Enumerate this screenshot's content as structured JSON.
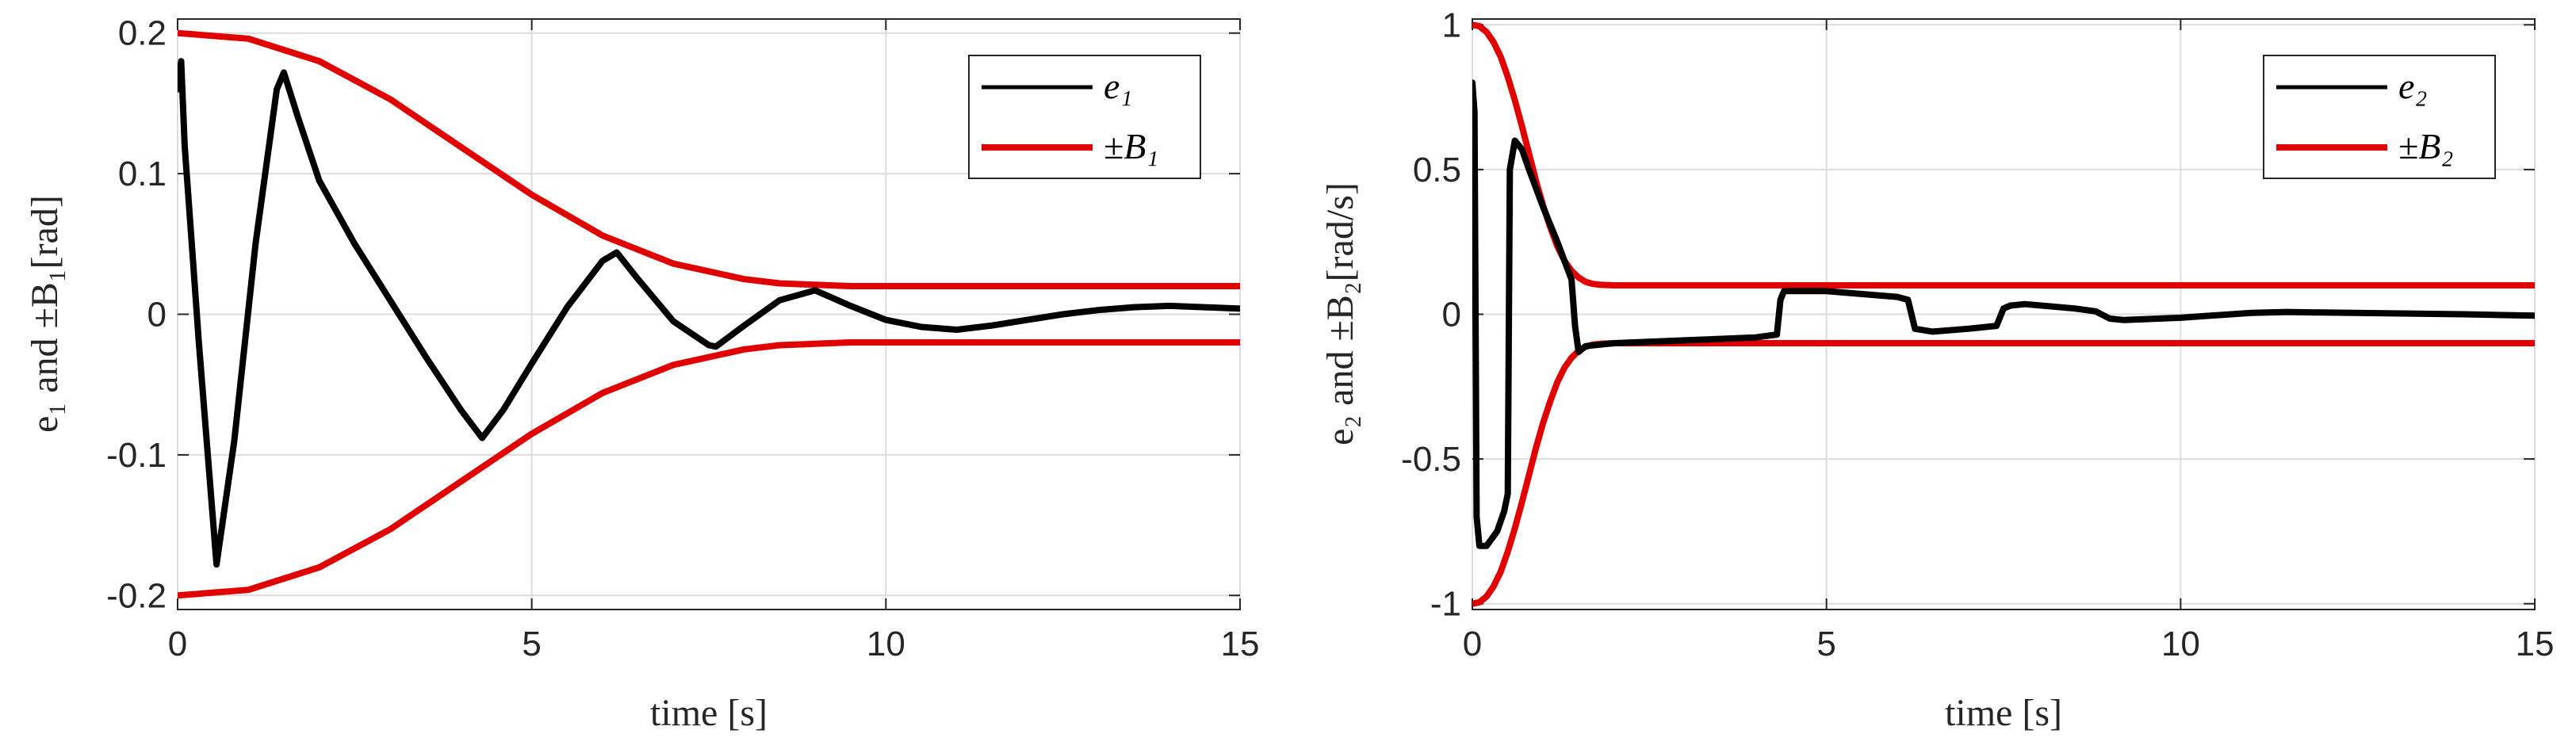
{
  "chart_data": [
    {
      "type": "line",
      "xlabel": "time [s]",
      "ylabel": "e₁ and ±B₁[rad]",
      "xlim": [
        0,
        15
      ],
      "ylim": [
        -0.21,
        0.21
      ],
      "xticks": [
        0,
        5,
        10,
        15
      ],
      "yticks": [
        -0.2,
        -0.1,
        0,
        0.1,
        0.2
      ],
      "xtick_labels": [
        "0",
        "5",
        "10",
        "15"
      ],
      "ytick_labels": [
        "-0.2",
        "-0.1",
        "0",
        "0.1",
        "0.2"
      ],
      "grid": true,
      "legend_position": "top-right",
      "series": [
        {
          "name": "e₁",
          "color": "#000000",
          "x": [
            0,
            0.05,
            0.1,
            0.2,
            0.3,
            0.55,
            0.8,
            1.1,
            1.4,
            1.5,
            1.7,
            2.0,
            2.5,
            3.0,
            3.5,
            4.0,
            4.3,
            4.6,
            5.0,
            5.5,
            6.0,
            6.2,
            6.5,
            7.0,
            7.5,
            7.6,
            8.0,
            8.5,
            9.0,
            9.5,
            10.0,
            10.5,
            11.0,
            11.5,
            12.0,
            12.5,
            13.0,
            13.5,
            14.0,
            14.5,
            15.0
          ],
          "y": [
            0.16,
            0.18,
            0.12,
            0.05,
            -0.02,
            -0.178,
            -0.09,
            0.05,
            0.16,
            0.172,
            0.14,
            0.095,
            0.05,
            0.01,
            -0.03,
            -0.068,
            -0.088,
            -0.068,
            -0.035,
            0.005,
            0.038,
            0.044,
            0.025,
            -0.005,
            -0.022,
            -0.023,
            -0.008,
            0.01,
            0.017,
            0.006,
            -0.004,
            -0.009,
            -0.011,
            -0.008,
            -0.004,
            0,
            0.003,
            0.005,
            0.006,
            0.005,
            0.004
          ]
        },
        {
          "name": "±B₁",
          "color": "#e00000",
          "x": [
            0,
            1,
            2,
            3,
            4,
            5,
            6,
            7,
            8,
            8.5,
            9,
            9.5,
            10,
            11,
            12,
            13,
            14,
            15
          ],
          "y": [
            0.2,
            0.196,
            0.18,
            0.153,
            0.119,
            0.085,
            0.056,
            0.036,
            0.025,
            0.022,
            0.021,
            0.02,
            0.02,
            0.02,
            0.02,
            0.02,
            0.02,
            0.02
          ]
        }
      ]
    },
    {
      "type": "line",
      "xlabel": "time [s]",
      "ylabel": "e₂ and ±B₂[rad/s]",
      "xlim": [
        0,
        15
      ],
      "ylim": [
        -1.02,
        1.02
      ],
      "xticks": [
        0,
        5,
        10,
        15
      ],
      "yticks": [
        -1,
        -0.5,
        0,
        0.5,
        1
      ],
      "xtick_labels": [
        "0",
        "5",
        "10",
        "15"
      ],
      "ytick_labels": [
        "-1",
        "-0.5",
        "0",
        "0.5",
        "1"
      ],
      "grid": true,
      "legend_position": "top-right",
      "series": [
        {
          "name": "e₂",
          "color": "#000000",
          "x": [
            0,
            0.03,
            0.06,
            0.1,
            0.2,
            0.35,
            0.45,
            0.5,
            0.53,
            0.6,
            0.7,
            0.8,
            1.0,
            1.2,
            1.4,
            1.45,
            1.5,
            1.6,
            2.0,
            3.0,
            4.0,
            4.3,
            4.35,
            4.4,
            5.0,
            6.0,
            6.15,
            6.25,
            6.5,
            7.0,
            7.4,
            7.5,
            7.6,
            7.8,
            8.5,
            8.8,
            9.0,
            9.2,
            10.0,
            11.0,
            11.5,
            12.0,
            13.0,
            14.0,
            15.0
          ],
          "y": [
            0.8,
            0.7,
            -0.7,
            -0.8,
            -0.8,
            -0.75,
            -0.68,
            -0.62,
            0.5,
            0.6,
            0.57,
            0.5,
            0.37,
            0.25,
            0.12,
            -0.04,
            -0.13,
            -0.11,
            -0.1,
            -0.09,
            -0.08,
            -0.07,
            0.05,
            0.08,
            0.08,
            0.06,
            0.05,
            -0.05,
            -0.06,
            -0.05,
            -0.04,
            0.02,
            0.03,
            0.035,
            0.02,
            0.01,
            -0.015,
            -0.02,
            -0.012,
            0.005,
            0.008,
            0.006,
            0.003,
            0,
            -0.005
          ]
        },
        {
          "name": "±B₂",
          "color": "#e00000",
          "x": [
            0,
            0.1,
            0.2,
            0.3,
            0.4,
            0.5,
            0.6,
            0.7,
            0.8,
            0.9,
            1.0,
            1.1,
            1.2,
            1.3,
            1.4,
            1.5,
            1.6,
            1.7,
            1.8,
            2.0,
            2.5,
            3,
            15
          ],
          "y": [
            1.0,
            0.995,
            0.975,
            0.94,
            0.89,
            0.82,
            0.74,
            0.65,
            0.555,
            0.46,
            0.375,
            0.3,
            0.235,
            0.185,
            0.15,
            0.127,
            0.112,
            0.105,
            0.102,
            0.1,
            0.1,
            0.1,
            0.1
          ]
        }
      ]
    }
  ]
}
